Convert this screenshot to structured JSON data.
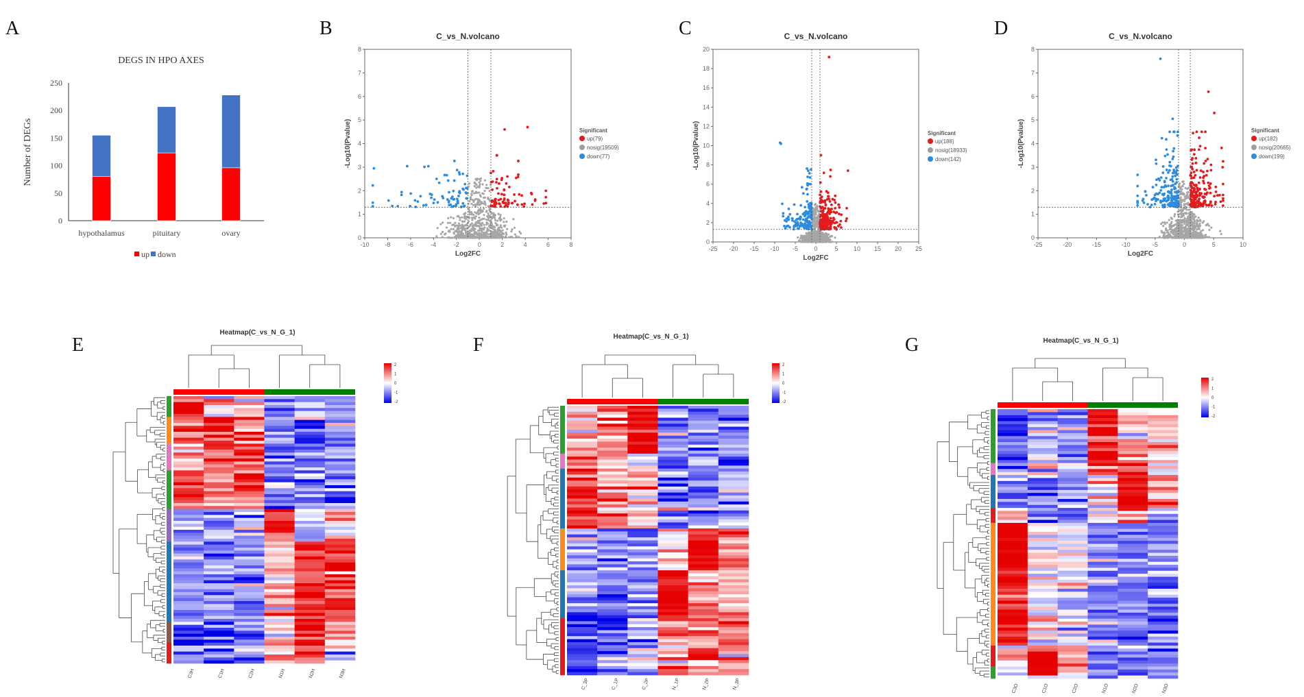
{
  "panel_labels": {
    "A": "A",
    "B": "B",
    "C": "C",
    "D": "D",
    "E": "E",
    "F": "F",
    "G": "G"
  },
  "chart_data": [
    {
      "panel": "A",
      "type": "bar",
      "stacked": true,
      "title": "DEGS IN HPO AXES",
      "xlabel": "",
      "ylabel": "Number of DEGs",
      "categories": [
        "hypothalamus",
        "pituitary",
        "ovary"
      ],
      "series": [
        {
          "name": "up",
          "values": [
            80,
            123,
            96
          ],
          "color": "#ff0000"
        },
        {
          "name": "down",
          "values": [
            75,
            84,
            132
          ],
          "color": "#4472c4"
        }
      ],
      "ylim": [
        0,
        250
      ],
      "yticks": [
        "0",
        "50",
        "100",
        "150",
        "200",
        "250"
      ],
      "legend": "bottom"
    },
    {
      "panel": "B",
      "type": "scatter",
      "title": "C_vs_N.volcano",
      "xlabel": "Log2FC",
      "ylabel": "-Log10(Pvalue)",
      "xlim": [
        -10,
        8
      ],
      "xticks": [
        "-10",
        "-8",
        "-6",
        "-4",
        "-2",
        "0",
        "2",
        "4",
        "6",
        "8"
      ],
      "ylim": [
        0,
        8
      ],
      "yticks": [
        "0",
        "1",
        "2",
        "3",
        "4",
        "5",
        "6",
        "7",
        "8"
      ],
      "thresholds": {
        "log2fc": [
          -1,
          1
        ],
        "neglog10p": 1.3
      },
      "legend_title": "Significant",
      "legend": [
        {
          "label": "up(79)",
          "color": "#e41a1c"
        },
        {
          "label": "nosig(19509)",
          "color": "#9e9e9e"
        },
        {
          "label": "down(77)",
          "color": "#2b8ce0"
        }
      ],
      "counts": {
        "up": 79,
        "nosig": 19509,
        "down": 77
      }
    },
    {
      "panel": "C",
      "type": "scatter",
      "title": "C_vs_N.volcano",
      "xlabel": "Log2FC",
      "ylabel": "-Log10(Pvalue)",
      "xlim": [
        -25,
        25
      ],
      "xticks": [
        "-25",
        "-20",
        "-15",
        "-10",
        "-5",
        "0",
        "5",
        "10",
        "15",
        "20",
        "25"
      ],
      "ylim": [
        0,
        20
      ],
      "yticks": [
        "0",
        "2",
        "4",
        "6",
        "8",
        "10",
        "12",
        "14",
        "16",
        "18",
        "20"
      ],
      "thresholds": {
        "log2fc": [
          -1,
          1
        ],
        "neglog10p": 1.3
      },
      "legend_title": "Significant",
      "legend": [
        {
          "label": "up(188)",
          "color": "#e41a1c"
        },
        {
          "label": "nosig(18933)",
          "color": "#9e9e9e"
        },
        {
          "label": "down(142)",
          "color": "#2b8ce0"
        }
      ],
      "counts": {
        "up": 188,
        "nosig": 18933,
        "down": 142
      }
    },
    {
      "panel": "D",
      "type": "scatter",
      "title": "C_vs_N.volcano",
      "xlabel": "Log2FC",
      "ylabel": "-Log10(Pvalue)",
      "xlim": [
        -25,
        10
      ],
      "xticks": [
        "-25",
        "-20",
        "-15",
        "-10",
        "-5",
        "0",
        "5",
        "10"
      ],
      "ylim": [
        0,
        8
      ],
      "yticks": [
        "0",
        "1",
        "2",
        "3",
        "4",
        "5",
        "6",
        "7",
        "8"
      ],
      "thresholds": {
        "log2fc": [
          -1,
          1
        ],
        "neglog10p": 1.3
      },
      "legend_title": "Significant",
      "legend": [
        {
          "label": "up(182)",
          "color": "#e41a1c"
        },
        {
          "label": "nosig(20665)",
          "color": "#9e9e9e"
        },
        {
          "label": "down(199)",
          "color": "#2b8ce0"
        }
      ],
      "counts": {
        "up": 182,
        "nosig": 20665,
        "down": 199
      }
    },
    {
      "panel": "E",
      "type": "heatmap",
      "title": "Heatmap(C_vs_N_G_1)",
      "columns": [
        "C3H",
        "C1H",
        "C2H",
        "N1H",
        "N2H",
        "N3H"
      ],
      "column_groups": [
        {
          "name": "C",
          "color": "#ff0000"
        },
        {
          "name": "N",
          "color": "#008000"
        }
      ],
      "color_scale": {
        "min": -2,
        "max": 2,
        "ticks": [
          "2",
          "1",
          "0",
          "-1",
          "-2"
        ],
        "colors": [
          "#0000e6",
          "#ffffff",
          "#e60000"
        ]
      },
      "row_clusters": [
        {
          "fraction": 0.08,
          "color": "#2ca02c",
          "pattern": [
            2,
            0.5,
            0.3,
            -1,
            -0.5,
            -1
          ]
        },
        {
          "fraction": 0.1,
          "color": "#ff8c1a",
          "pattern": [
            1,
            2,
            1,
            -1,
            -1,
            -1
          ]
        },
        {
          "fraction": 0.1,
          "color": "#e377c2",
          "pattern": [
            0.5,
            1.5,
            2,
            -1,
            -1,
            -1
          ]
        },
        {
          "fraction": 0.14,
          "color": "#2ca02c",
          "pattern": [
            1.5,
            1,
            1.5,
            -1,
            -1,
            -1
          ]
        },
        {
          "fraction": 0.12,
          "color": "#9467bd",
          "pattern": [
            -0.8,
            -0.8,
            -0.8,
            2,
            0,
            0.5
          ]
        },
        {
          "fraction": 0.3,
          "color": "#1f77b4",
          "pattern": [
            -1,
            -1,
            -1,
            0.5,
            1.5,
            1.5
          ]
        },
        {
          "fraction": 0.08,
          "color": "#8c564b",
          "pattern": [
            -1,
            -1.5,
            -1,
            0.5,
            2,
            0.5
          ]
        },
        {
          "fraction": 0.08,
          "color": "#e41a1c",
          "pattern": [
            -1,
            -1,
            -1,
            1,
            1.5,
            -0.5
          ]
        }
      ]
    },
    {
      "panel": "F",
      "type": "heatmap",
      "title": "Heatmap(C_vs_N_G_1)",
      "columns": [
        "C_3P",
        "C_1P",
        "C_2P",
        "N_1P",
        "N_2P",
        "N_3P"
      ],
      "column_groups": [
        {
          "name": "C",
          "color": "#ff0000"
        },
        {
          "name": "N",
          "color": "#008000"
        }
      ],
      "color_scale": {
        "min": -2,
        "max": 2,
        "ticks": [
          "2",
          "1",
          "0",
          "-1",
          "-2"
        ],
        "colors": [
          "#0000e6",
          "#ffffff",
          "#e60000"
        ]
      },
      "row_clusters": [
        {
          "fraction": 0.18,
          "color": "#2ca02c",
          "pattern": [
            0.5,
            1,
            2,
            -1,
            -1,
            -1
          ]
        },
        {
          "fraction": 0.06,
          "color": "#e377c2",
          "pattern": [
            1.5,
            0.5,
            0,
            -1,
            -1,
            -1
          ]
        },
        {
          "fraction": 0.22,
          "color": "#1f77b4",
          "pattern": [
            1.5,
            1,
            0.8,
            -1,
            -1,
            -0.8
          ]
        },
        {
          "fraction": 0.16,
          "color": "#ff8c1a",
          "pattern": [
            -1,
            -1,
            -1,
            0,
            2,
            1
          ]
        },
        {
          "fraction": 0.18,
          "color": "#1f77b4",
          "pattern": [
            -1,
            -1,
            -1,
            2,
            1,
            0.5
          ]
        },
        {
          "fraction": 0.2,
          "color": "#e41a1c",
          "pattern": [
            -1.5,
            -1,
            -0.5,
            1,
            1,
            1
          ]
        }
      ]
    },
    {
      "panel": "G",
      "type": "heatmap",
      "title": "Heatmap(C_vs_N_G_1)",
      "columns": [
        "C3O",
        "C1O",
        "C2O",
        "N1O",
        "N2O",
        "N3O"
      ],
      "column_groups": [
        {
          "name": "C",
          "color": "#ff0000"
        },
        {
          "name": "N",
          "color": "#008000"
        }
      ],
      "color_scale": {
        "min": -2,
        "max": 2,
        "ticks": [
          "2",
          "1",
          "0",
          "-1",
          "-2"
        ],
        "colors": [
          "#0000e6",
          "#ffffff",
          "#e60000"
        ]
      },
      "row_clusters": [
        {
          "fraction": 0.2,
          "color": "#2ca02c",
          "pattern": [
            -1.5,
            -0.5,
            -0.8,
            2,
            0.5,
            0.5
          ]
        },
        {
          "fraction": 0.04,
          "color": "#e377c2",
          "pattern": [
            -1,
            0,
            -0.5,
            1,
            1.5,
            0
          ]
        },
        {
          "fraction": 0.12,
          "color": "#1f77b4",
          "pattern": [
            -1,
            -1,
            -0.5,
            0.3,
            2,
            1
          ]
        },
        {
          "fraction": 0.05,
          "color": "#e41a1c",
          "pattern": [
            0.5,
            -1,
            -1,
            -0.5,
            1.5,
            -0.5
          ]
        },
        {
          "fraction": 0.45,
          "color": "#ff8c1a",
          "pattern": [
            2,
            0,
            -0.3,
            -1,
            -1,
            -1
          ]
        },
        {
          "fraction": 0.08,
          "color": "#e41a1c",
          "pattern": [
            0,
            2,
            1,
            -1,
            -1,
            -1
          ]
        },
        {
          "fraction": 0.06,
          "color": "#2ca02c",
          "pattern": [
            -0.5,
            1.5,
            0.3,
            -1,
            -0.5,
            -1
          ]
        }
      ]
    }
  ]
}
